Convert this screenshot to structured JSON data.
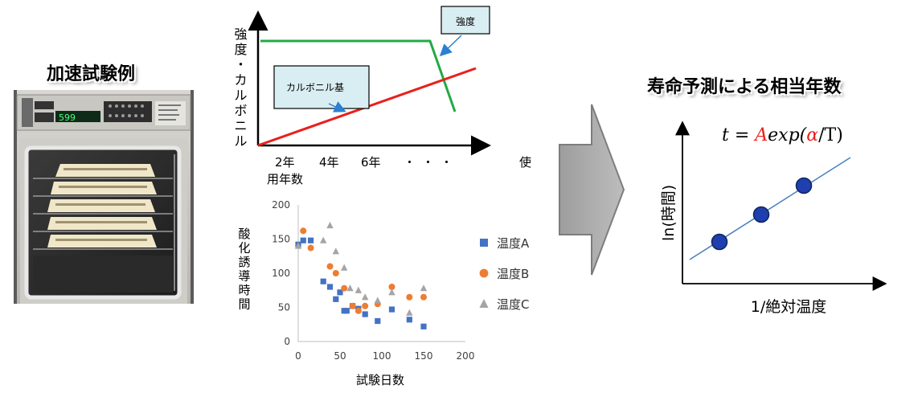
{
  "left": {
    "title": "加速試験例",
    "oven_display": "599"
  },
  "concept": {
    "y_axis_label": "強度・カルボニル",
    "x_ticks": [
      "2年",
      "4年",
      "6年",
      "・・・"
    ],
    "x_axis_label_1": "使",
    "x_axis_label_2": "用年数",
    "callout_strength": "強度",
    "callout_carbonyl": "カルボニル基",
    "colors": {
      "strength": "#22aa44",
      "carbonyl": "#e8201c",
      "callout_bg": "#d9eef2"
    }
  },
  "chart_data": {
    "type": "scatter",
    "xlabel": "試験日数",
    "ylabel": "酸化誘導時間",
    "xlim": [
      0,
      200
    ],
    "ylim": [
      0,
      200
    ],
    "xticks": [
      0,
      50,
      100,
      150,
      200
    ],
    "yticks": [
      0,
      50,
      100,
      150,
      200
    ],
    "legend_position": "right",
    "series": [
      {
        "name": "温度A",
        "marker": "square",
        "color": "#4472c4",
        "points": [
          [
            0,
            142
          ],
          [
            6,
            148
          ],
          [
            15,
            148
          ],
          [
            30,
            88
          ],
          [
            38,
            80
          ],
          [
            45,
            62
          ],
          [
            50,
            72
          ],
          [
            55,
            45
          ],
          [
            58,
            45
          ],
          [
            65,
            52
          ],
          [
            72,
            48
          ],
          [
            80,
            40
          ],
          [
            95,
            30
          ],
          [
            112,
            47
          ],
          [
            133,
            32
          ],
          [
            150,
            22
          ]
        ]
      },
      {
        "name": "温度B",
        "marker": "circle",
        "color": "#ed7d31",
        "points": [
          [
            6,
            162
          ],
          [
            15,
            137
          ],
          [
            38,
            110
          ],
          [
            45,
            100
          ],
          [
            55,
            78
          ],
          [
            65,
            52
          ],
          [
            72,
            45
          ],
          [
            80,
            52
          ],
          [
            95,
            55
          ],
          [
            112,
            80
          ],
          [
            133,
            65
          ],
          [
            150,
            65
          ]
        ]
      },
      {
        "name": "温度C",
        "marker": "triangle",
        "color": "#a5a5a5",
        "points": [
          [
            0,
            140
          ],
          [
            30,
            148
          ],
          [
            38,
            170
          ],
          [
            45,
            132
          ],
          [
            55,
            108
          ],
          [
            62,
            78
          ],
          [
            72,
            75
          ],
          [
            80,
            65
          ],
          [
            95,
            60
          ],
          [
            112,
            72
          ],
          [
            133,
            42
          ],
          [
            150,
            78
          ]
        ]
      }
    ]
  },
  "right": {
    "title": "寿命予測による相当年数",
    "formula": {
      "t": "t",
      "eq": " = ",
      "A": "A",
      "exp": "exp(",
      "alpha": "α",
      "tail": "/T)"
    },
    "y_axis_label": "ln(時間)",
    "x_axis_label": "1/絶対温度",
    "point_color": "#1f3fae",
    "line_color": "#4a7fc1"
  }
}
